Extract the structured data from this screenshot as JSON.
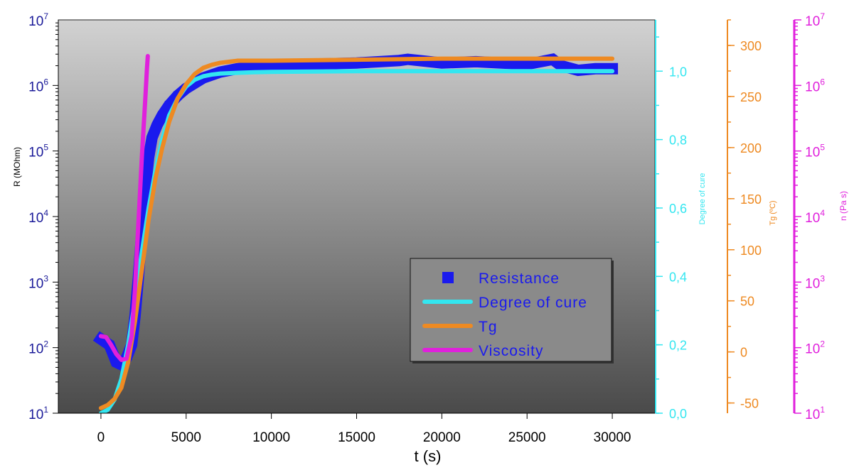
{
  "chart_data": {
    "type": "line",
    "xlabel": "t (s)",
    "xlim": [
      -2500,
      32500
    ],
    "xticks": [
      0,
      5000,
      10000,
      15000,
      20000,
      25000,
      30000
    ],
    "axes": {
      "left": {
        "label": "R (MOhm)",
        "scale": "log",
        "range": [
          10,
          10000000
        ],
        "color": "#1a1a99",
        "ticks": [
          {
            "base": "10",
            "exp": "1"
          },
          {
            "base": "10",
            "exp": "2"
          },
          {
            "base": "10",
            "exp": "3"
          },
          {
            "base": "10",
            "exp": "4"
          },
          {
            "base": "10",
            "exp": "5"
          },
          {
            "base": "10",
            "exp": "6"
          },
          {
            "base": "10",
            "exp": "7"
          }
        ]
      },
      "right1": {
        "label": "Degree of cure",
        "scale": "linear",
        "range": [
          0,
          1.15
        ],
        "color": "#33e6f0",
        "ticks": [
          "0,0",
          "0,2",
          "0,4",
          "0,6",
          "0,8",
          "1,0"
        ]
      },
      "right2": {
        "label": "Tg (ºC)",
        "scale": "linear",
        "range": [
          -60,
          325
        ],
        "color": "#ee8a22",
        "ticks": [
          "-50",
          "0",
          "50",
          "100",
          "150",
          "200",
          "250",
          "300"
        ]
      },
      "right3": {
        "label": "n (Pa s)",
        "scale": "log",
        "range": [
          10,
          10000000
        ],
        "color": "#e020dc",
        "ticks": [
          {
            "base": "10",
            "exp": "1"
          },
          {
            "base": "10",
            "exp": "2"
          },
          {
            "base": "10",
            "exp": "3"
          },
          {
            "base": "10",
            "exp": "4"
          },
          {
            "base": "10",
            "exp": "5"
          },
          {
            "base": "10",
            "exp": "6"
          },
          {
            "base": "10",
            "exp": "7"
          }
        ]
      }
    },
    "legend": {
      "position": "center-right",
      "entries": [
        "Resistance",
        "Degree of cure",
        "Tg",
        "Viscosity"
      ]
    },
    "series": [
      {
        "name": "Resistance",
        "axis": "left",
        "color": "#1a1aee",
        "marker": "square",
        "x": [
          0,
          500,
          900,
          1200,
          1500,
          1800,
          2000,
          2200,
          2400,
          2600,
          2800,
          3000,
          3300,
          3600,
          4000,
          4500,
          5000,
          6000,
          7000,
          8000,
          10000,
          12000,
          15000,
          17500,
          18000,
          20000,
          22000,
          25000,
          26500,
          27000,
          28000,
          29000,
          30000
        ],
        "y": [
          135,
          110,
          60,
          55,
          70,
          110,
          300,
          1200,
          6000,
          25000,
          80000,
          160000,
          250000,
          350000,
          500000,
          700000,
          900000,
          1300000,
          1600000,
          1800000,
          2000000,
          2100000,
          2200000,
          2400000,
          2500000,
          2200000,
          2300000,
          2100000,
          2500000,
          2000000,
          1700000,
          1800000,
          1800000
        ]
      },
      {
        "name": "Degree of cure",
        "axis": "right1",
        "color": "#33e6f0",
        "x": [
          0,
          400,
          800,
          1200,
          1600,
          2000,
          2400,
          2800,
          3200,
          3600,
          4000,
          4500,
          5000,
          5500,
          6000,
          6500,
          7000,
          8000,
          9000,
          10000,
          15000,
          20000,
          25000,
          30000
        ],
        "y": [
          0.0,
          0.01,
          0.04,
          0.1,
          0.2,
          0.33,
          0.47,
          0.6,
          0.71,
          0.8,
          0.87,
          0.92,
          0.955,
          0.975,
          0.985,
          0.99,
          0.993,
          0.995,
          0.997,
          0.998,
          1.0,
          1.0,
          1.0,
          1.0
        ]
      },
      {
        "name": "Tg",
        "axis": "right2",
        "color": "#ee8a22",
        "x": [
          0,
          400,
          800,
          1200,
          1600,
          2000,
          2400,
          2800,
          3200,
          3600,
          4000,
          4500,
          5000,
          5500,
          6000,
          6500,
          7000,
          7500,
          8000,
          9000,
          10000,
          15000,
          20000,
          25000,
          30000
        ],
        "y": [
          -55,
          -52,
          -46,
          -35,
          -10,
          30,
          80,
          130,
          170,
          200,
          225,
          248,
          262,
          272,
          278,
          281,
          283,
          284,
          285,
          285,
          285,
          286,
          287,
          287,
          287
        ]
      },
      {
        "name": "Viscosity",
        "axis": "right3",
        "color": "#e020dc",
        "x": [
          0,
          300,
          600,
          900,
          1200,
          1500,
          1800,
          2000,
          2200,
          2400,
          2600,
          2700,
          2750
        ],
        "y": [
          150,
          145,
          110,
          80,
          65,
          68,
          150,
          800,
          8000,
          80000,
          600000,
          1800000,
          2800000
        ]
      }
    ]
  }
}
